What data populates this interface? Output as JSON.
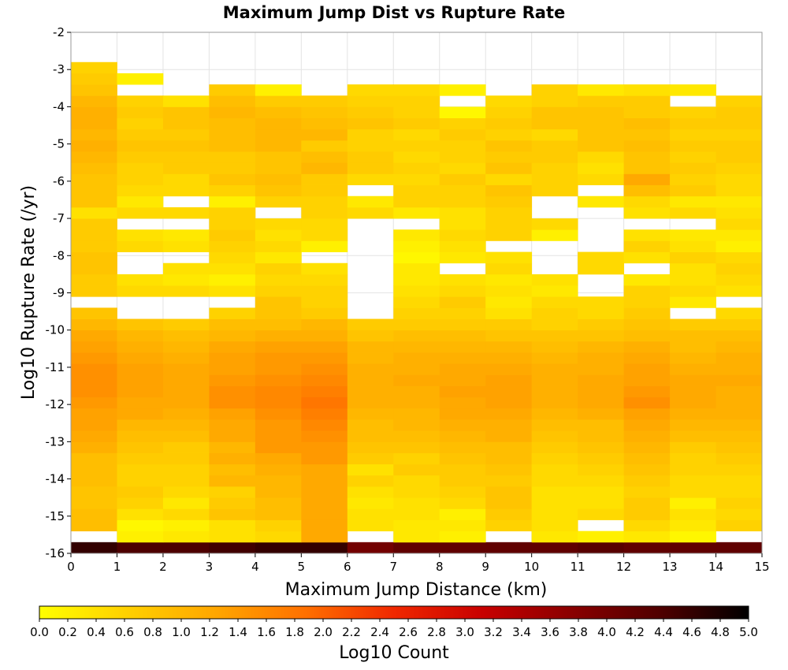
{
  "chart_data": {
    "type": "heatmap",
    "title": "Maximum Jump Dist vs Rupture Rate",
    "xlabel": "Maximum Jump Distance (km)",
    "ylabel": "Log10 Rupture Rate (/yr)",
    "xlim": [
      0,
      15
    ],
    "ylim": [
      -16,
      -2
    ],
    "x_ticks": [
      "0",
      "1",
      "2",
      "3",
      "4",
      "5",
      "6",
      "7",
      "8",
      "9",
      "10",
      "11",
      "12",
      "13",
      "14",
      "15"
    ],
    "y_ticks": [
      "-2",
      "-3",
      "-4",
      "-5",
      "-6",
      "-7",
      "-8",
      "-9",
      "-10",
      "-11",
      "-12",
      "-13",
      "-14",
      "-15",
      "-16"
    ],
    "x_bin_width": 1,
    "y_bin_width": 0.3,
    "y_bin_start": -16.0,
    "grid": true,
    "colorscale": {
      "label": "Log10 Count",
      "range": [
        0.0,
        5.0
      ],
      "ticks": [
        "0.0",
        "0.2",
        "0.4",
        "0.6",
        "0.8",
        "1.0",
        "1.2",
        "1.4",
        "1.6",
        "1.8",
        "2.0",
        "2.2",
        "2.4",
        "2.6",
        "2.8",
        "3.0",
        "3.2",
        "3.4",
        "3.6",
        "3.8",
        "4.0",
        "4.2",
        "4.4",
        "4.6",
        "4.8",
        "5.0"
      ],
      "colors": [
        "#ffff00",
        "#ffd000",
        "#ffa600",
        "#ff7000",
        "#f02800",
        "#c80000",
        "#8a0000",
        "#500000",
        "#000000"
      ]
    },
    "x_bins": [
      0,
      1,
      2,
      3,
      4,
      5,
      6,
      7,
      8,
      9,
      10,
      11,
      12,
      13,
      14
    ],
    "y_bins": [
      -16.0,
      -15.7,
      -15.4,
      -15.1,
      -14.8,
      -14.5,
      -14.2,
      -13.9,
      -13.6,
      -13.3,
      -13.0,
      -12.7,
      -12.4,
      -12.1,
      -11.8,
      -11.5,
      -11.2,
      -10.9,
      -10.6,
      -10.3,
      -10.0,
      -9.7,
      -9.4,
      -9.1,
      -8.8,
      -8.5,
      -8.2,
      -7.9,
      -7.6,
      -7.3,
      -7.0,
      -6.7,
      -6.4,
      -6.1,
      -5.8,
      -5.5,
      -5.2,
      -4.9,
      -4.6,
      -4.3,
      -4.0,
      -3.7,
      -3.4,
      -3.1
    ],
    "values": [
      [
        4.6,
        4.4,
        4.4,
        4.5,
        4.6,
        4.6,
        4.0,
        4.2,
        4.2,
        4.2,
        4.2,
        4.3,
        4.2,
        4.2,
        4.2
      ],
      [
        null,
        0.2,
        0.3,
        0.4,
        0.5,
        1.2,
        null,
        0.3,
        0.2,
        null,
        0.3,
        0.2,
        0.3,
        0.1,
        null
      ],
      [
        0.9,
        0.1,
        0.2,
        0.4,
        0.6,
        1.2,
        0.4,
        0.3,
        0.3,
        0.6,
        0.4,
        null,
        0.5,
        0.3,
        0.6
      ],
      [
        0.9,
        0.4,
        0.5,
        0.8,
        0.9,
        1.2,
        0.4,
        0.4,
        0.2,
        0.7,
        0.4,
        0.5,
        0.7,
        0.4,
        0.5
      ],
      [
        0.8,
        0.6,
        0.3,
        0.7,
        0.9,
        1.2,
        0.3,
        0.4,
        0.5,
        0.8,
        0.4,
        0.4,
        0.7,
        0.2,
        0.6
      ],
      [
        0.8,
        0.7,
        0.5,
        0.6,
        1.0,
        1.2,
        0.4,
        0.5,
        0.6,
        0.8,
        0.4,
        0.4,
        0.6,
        0.5,
        0.5
      ],
      [
        0.9,
        0.6,
        0.6,
        1.0,
        1.0,
        1.2,
        0.6,
        0.5,
        0.7,
        0.7,
        0.5,
        0.5,
        0.7,
        0.5,
        0.5
      ],
      [
        0.9,
        0.6,
        0.6,
        0.9,
        1.1,
        1.2,
        0.4,
        0.7,
        0.7,
        0.8,
        0.5,
        0.6,
        0.8,
        0.6,
        0.6
      ],
      [
        0.9,
        0.7,
        0.7,
        1.1,
        1.2,
        1.4,
        0.7,
        0.6,
        0.8,
        0.9,
        0.6,
        0.7,
        0.9,
        0.6,
        0.7
      ],
      [
        1.1,
        0.8,
        0.7,
        1.0,
        1.4,
        1.4,
        0.8,
        0.8,
        0.9,
        0.9,
        0.7,
        0.8,
        1.0,
        0.7,
        0.8
      ],
      [
        1.2,
        0.9,
        0.9,
        1.2,
        1.4,
        1.5,
        0.9,
        0.9,
        1.0,
        1.1,
        0.8,
        0.9,
        1.1,
        0.9,
        0.9
      ],
      [
        1.3,
        1.0,
        1.0,
        1.2,
        1.4,
        1.6,
        0.9,
        1.0,
        1.1,
        1.1,
        0.9,
        0.9,
        1.2,
        1.0,
        1.0
      ],
      [
        1.3,
        1.2,
        1.1,
        1.3,
        1.5,
        1.7,
        1.0,
        1.0,
        1.2,
        1.2,
        1.0,
        1.1,
        1.3,
        1.1,
        1.1
      ],
      [
        1.4,
        1.2,
        1.2,
        1.5,
        1.6,
        1.8,
        1.1,
        1.1,
        1.2,
        1.3,
        1.1,
        1.2,
        1.5,
        1.2,
        1.1
      ],
      [
        1.5,
        1.3,
        1.2,
        1.5,
        1.6,
        1.7,
        1.1,
        1.1,
        1.3,
        1.3,
        1.1,
        1.2,
        1.4,
        1.2,
        1.1
      ],
      [
        1.5,
        1.3,
        1.2,
        1.4,
        1.5,
        1.6,
        1.1,
        1.2,
        1.2,
        1.3,
        1.1,
        1.2,
        1.3,
        1.2,
        1.2
      ],
      [
        1.5,
        1.3,
        1.2,
        1.3,
        1.4,
        1.5,
        1.1,
        1.1,
        1.2,
        1.2,
        1.1,
        1.1,
        1.3,
        1.1,
        1.1
      ],
      [
        1.4,
        1.2,
        1.1,
        1.3,
        1.4,
        1.4,
        1.0,
        1.1,
        1.1,
        1.1,
        1.0,
        1.1,
        1.2,
        1.0,
        1.1
      ],
      [
        1.3,
        1.1,
        1.0,
        1.2,
        1.3,
        1.3,
        1.0,
        1.0,
        1.0,
        1.0,
        0.9,
        1.0,
        1.1,
        0.9,
        1.0
      ],
      [
        1.2,
        1.0,
        0.9,
        1.0,
        1.1,
        1.1,
        0.8,
        0.9,
        0.9,
        0.8,
        0.8,
        0.8,
        0.9,
        0.9,
        0.9
      ],
      [
        1.0,
        0.8,
        0.7,
        0.9,
        0.9,
        1.0,
        0.7,
        0.7,
        0.7,
        0.7,
        0.6,
        0.7,
        0.8,
        0.7,
        0.7
      ],
      [
        0.8,
        null,
        null,
        0.6,
        0.8,
        0.7,
        null,
        0.6,
        0.6,
        0.4,
        0.6,
        0.5,
        0.7,
        null,
        0.5
      ],
      [
        null,
        null,
        null,
        null,
        0.8,
        0.6,
        null,
        0.5,
        0.7,
        0.3,
        0.5,
        0.5,
        0.6,
        0.3,
        null
      ],
      [
        0.7,
        0.5,
        0.5,
        0.4,
        0.6,
        0.6,
        null,
        0.4,
        0.5,
        0.4,
        0.3,
        null,
        0.6,
        0.5,
        0.4
      ],
      [
        0.7,
        0.4,
        0.3,
        0.2,
        0.5,
        0.5,
        null,
        0.3,
        0.4,
        0.3,
        0.4,
        null,
        0.3,
        0.4,
        0.5
      ],
      [
        0.8,
        null,
        0.4,
        0.4,
        0.6,
        0.4,
        null,
        0.3,
        null,
        0.5,
        null,
        0.5,
        null,
        0.4,
        0.6
      ],
      [
        0.8,
        null,
        null,
        0.5,
        0.3,
        null,
        null,
        0.1,
        0.3,
        0.4,
        null,
        0.5,
        0.4,
        0.6,
        0.5
      ],
      [
        0.7,
        0.5,
        0.4,
        0.6,
        0.5,
        0.2,
        null,
        0.2,
        0.4,
        null,
        null,
        null,
        0.6,
        0.4,
        0.2
      ],
      [
        0.7,
        0.4,
        0.3,
        0.7,
        0.4,
        0.5,
        null,
        0.3,
        0.5,
        0.6,
        0.2,
        null,
        0.4,
        0.3,
        0.3
      ],
      [
        0.7,
        null,
        null,
        0.6,
        0.5,
        0.5,
        null,
        null,
        0.4,
        0.6,
        0.5,
        null,
        null,
        null,
        0.5
      ],
      [
        0.4,
        0.5,
        0.5,
        0.6,
        null,
        0.6,
        0.5,
        0.3,
        0.4,
        0.6,
        null,
        null,
        0.4,
        0.5,
        0.4
      ],
      [
        0.8,
        0.3,
        null,
        0.2,
        0.6,
        0.6,
        0.3,
        0.6,
        0.6,
        0.7,
        null,
        0.3,
        0.5,
        0.3,
        0.3
      ],
      [
        0.8,
        0.5,
        0.5,
        0.6,
        0.8,
        0.7,
        null,
        0.6,
        0.6,
        0.8,
        0.6,
        null,
        0.9,
        0.7,
        0.5
      ],
      [
        0.8,
        0.6,
        0.5,
        0.8,
        0.9,
        0.7,
        0.5,
        0.5,
        0.7,
        0.5,
        0.6,
        0.5,
        1.2,
        0.6,
        0.5
      ],
      [
        0.9,
        0.6,
        0.7,
        0.7,
        0.8,
        1.0,
        0.7,
        0.6,
        0.5,
        0.8,
        0.6,
        0.4,
        0.8,
        0.7,
        0.6
      ],
      [
        1.0,
        0.7,
        0.7,
        0.7,
        0.8,
        0.9,
        0.7,
        0.5,
        0.6,
        0.7,
        0.7,
        0.5,
        0.8,
        0.6,
        0.7
      ],
      [
        1.1,
        0.8,
        0.8,
        0.9,
        1.0,
        0.7,
        0.6,
        0.6,
        0.6,
        0.8,
        0.7,
        0.8,
        0.9,
        0.7,
        0.7
      ],
      [
        1.0,
        0.7,
        0.7,
        0.9,
        1.0,
        1.0,
        0.6,
        0.5,
        0.7,
        0.6,
        0.5,
        0.8,
        0.8,
        0.6,
        0.6
      ],
      [
        1.1,
        0.6,
        0.8,
        0.9,
        1.0,
        0.9,
        0.8,
        0.7,
        0.6,
        0.7,
        0.8,
        0.8,
        0.9,
        0.7,
        0.7
      ],
      [
        1.1,
        0.7,
        0.8,
        1.0,
        0.9,
        0.8,
        0.7,
        0.6,
        0.1,
        0.6,
        0.8,
        0.8,
        0.7,
        0.6,
        0.7
      ],
      [
        1.0,
        0.6,
        0.4,
        0.9,
        0.7,
        0.7,
        0.6,
        0.6,
        null,
        0.5,
        0.6,
        0.7,
        0.7,
        null,
        0.6
      ],
      [
        0.8,
        null,
        null,
        0.7,
        0.2,
        null,
        0.5,
        0.5,
        0.2,
        null,
        0.6,
        0.3,
        0.4,
        0.3,
        null
      ],
      [
        0.7,
        0.2,
        null,
        null,
        null,
        null,
        null,
        null,
        null,
        null,
        null,
        null,
        null,
        null,
        null
      ],
      [
        0.6,
        null,
        null,
        null,
        null,
        null,
        null,
        null,
        null,
        null,
        null,
        null,
        null,
        null,
        null
      ]
    ]
  }
}
